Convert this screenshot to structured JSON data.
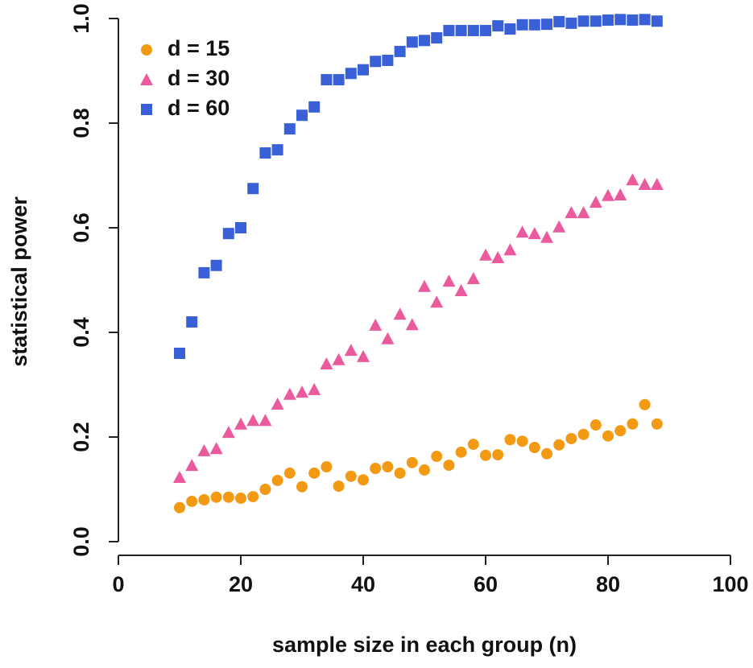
{
  "chart_data": {
    "type": "scatter",
    "xlabel": "sample size in each group (n)",
    "ylabel": "statistical power",
    "x": [
      10,
      12,
      14,
      16,
      18,
      20,
      22,
      24,
      26,
      28,
      30,
      32,
      34,
      36,
      38,
      40,
      42,
      44,
      46,
      48,
      50,
      52,
      54,
      56,
      58,
      60,
      62,
      64,
      66,
      68,
      70,
      72,
      74,
      76,
      78,
      80,
      82,
      84,
      86,
      88
    ],
    "series": [
      {
        "name": "d = 15",
        "color": "#f39a14",
        "marker": "circle",
        "values": [
          0.065,
          0.077,
          0.08,
          0.085,
          0.085,
          0.083,
          0.086,
          0.1,
          0.117,
          0.131,
          0.105,
          0.131,
          0.143,
          0.106,
          0.125,
          0.118,
          0.14,
          0.143,
          0.131,
          0.151,
          0.137,
          0.163,
          0.146,
          0.171,
          0.186,
          0.165,
          0.166,
          0.195,
          0.192,
          0.18,
          0.168,
          0.185,
          0.197,
          0.205,
          0.223,
          0.202,
          0.212,
          0.225,
          0.262,
          0.225
        ]
      },
      {
        "name": "d = 30",
        "color": "#ea5a9c",
        "marker": "triangle",
        "values": [
          0.123,
          0.146,
          0.174,
          0.178,
          0.209,
          0.225,
          0.232,
          0.232,
          0.263,
          0.282,
          0.286,
          0.291,
          0.34,
          0.348,
          0.366,
          0.354,
          0.414,
          0.388,
          0.435,
          0.415,
          0.488,
          0.458,
          0.498,
          0.48,
          0.503,
          0.548,
          0.543,
          0.558,
          0.592,
          0.589,
          0.582,
          0.602,
          0.629,
          0.629,
          0.649,
          0.662,
          0.663,
          0.692,
          0.683,
          0.683
        ]
      },
      {
        "name": "d = 60",
        "color": "#3a60d8",
        "marker": "square",
        "values": [
          0.36,
          0.42,
          0.514,
          0.528,
          0.589,
          0.6,
          0.675,
          0.743,
          0.749,
          0.789,
          0.815,
          0.831,
          0.883,
          0.883,
          0.895,
          0.902,
          0.918,
          0.92,
          0.937,
          0.955,
          0.958,
          0.963,
          0.977,
          0.977,
          0.977,
          0.977,
          0.986,
          0.98,
          0.988,
          0.988,
          0.989,
          0.994,
          0.991,
          0.995,
          0.995,
          0.997,
          0.998,
          0.997,
          0.998,
          0.995
        ]
      }
    ],
    "xlim": [
      0,
      100
    ],
    "xticks": [
      0,
      20,
      40,
      60,
      80,
      100
    ],
    "ylim": [
      0,
      1
    ],
    "yticks": [
      {
        "value": 0,
        "label": "0.0"
      },
      0.2,
      0.4,
      0.6,
      0.8,
      {
        "value": 1,
        "label": "1.0"
      }
    ],
    "grid": false,
    "legend": "upper left"
  }
}
